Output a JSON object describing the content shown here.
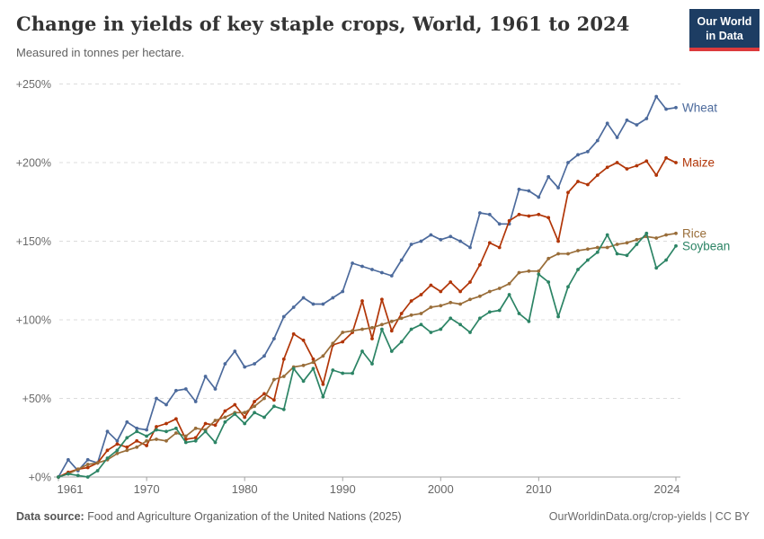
{
  "logo": {
    "line1": "Our World",
    "line2": "in Data",
    "bg_color": "#1D3D63",
    "accent_color": "#DC3A3C"
  },
  "footer": {
    "source_label": "Data source:",
    "source_text": " Food and Agriculture Organization of the United Nations (2025)",
    "credit": "OurWorldinData.org/crop-yields | CC BY"
  },
  "chart_data": {
    "type": "line",
    "title": "Change in yields of key staple crops, World, 1961 to 2024",
    "subtitle": "Measured in tonnes per hectare.",
    "unit": "percent change relative to 1961",
    "x_start": 1961,
    "x_end": 2024,
    "x_ticks": [
      1961,
      1970,
      1980,
      1990,
      2000,
      2010,
      2024
    ],
    "y_tick_values": [
      0,
      50,
      100,
      150,
      200,
      250
    ],
    "y_tick_labels": [
      "+0%",
      "+50%",
      "+100%",
      "+150%",
      "+200%",
      "+250%"
    ],
    "ylim": [
      0,
      250
    ],
    "grid": "horizontal-dashed",
    "legend_position": "line-end-labels",
    "axis_color": "#a3a3a3",
    "grid_color": "#dcdcdc",
    "tick_text_color": "#6b6b6b",
    "series": [
      {
        "name": "Wheat",
        "color": "#4C6A9C",
        "values": [
          0,
          11,
          4,
          11,
          9,
          29,
          23,
          35,
          31,
          30,
          50,
          46,
          55,
          56,
          48,
          64,
          56,
          72,
          80,
          70,
          72,
          77,
          88,
          102,
          108,
          114,
          110,
          110,
          114,
          118,
          136,
          134,
          132,
          130,
          128,
          138,
          148,
          150,
          154,
          151,
          153,
          150,
          146,
          168,
          167,
          161,
          161,
          183,
          182,
          178,
          191,
          184,
          200,
          205,
          207,
          214,
          225,
          216,
          227,
          224,
          228,
          242,
          234,
          235
        ]
      },
      {
        "name": "Maize",
        "color": "#B13507",
        "values": [
          0,
          3,
          5,
          6,
          9,
          17,
          21,
          19,
          23,
          20,
          32,
          34,
          37,
          24,
          25,
          34,
          33,
          42,
          46,
          38,
          48,
          53,
          49,
          75,
          91,
          87,
          75,
          59,
          84,
          86,
          92,
          112,
          88,
          113,
          93,
          104,
          112,
          116,
          122,
          118,
          124,
          118,
          124,
          135,
          149,
          146,
          163,
          167,
          166,
          167,
          165,
          150,
          181,
          188,
          186,
          192,
          197,
          200,
          196,
          198,
          201,
          192,
          203,
          200
        ]
      },
      {
        "name": "Rice",
        "color": "#996D39",
        "values": [
          0,
          2,
          5,
          8,
          9,
          11,
          15,
          17,
          19,
          23,
          24,
          23,
          28,
          26,
          31,
          30,
          36,
          38,
          41,
          41,
          45,
          50,
          62,
          64,
          70,
          71,
          73,
          77,
          85,
          92,
          93,
          94,
          95,
          97,
          99,
          101,
          103,
          104,
          108,
          109,
          111,
          110,
          113,
          115,
          118,
          120,
          123,
          130,
          131,
          131,
          139,
          142,
          142,
          144,
          145,
          146,
          146,
          148,
          149,
          151,
          153,
          152,
          154,
          155
        ]
      },
      {
        "name": "Soybean",
        "color": "#2C8465",
        "values": [
          0,
          2,
          1,
          0,
          4,
          12,
          17,
          25,
          29,
          26,
          30,
          29,
          31,
          22,
          23,
          29,
          22,
          35,
          40,
          34,
          41,
          38,
          45,
          43,
          69,
          61,
          69,
          51,
          68,
          66,
          66,
          80,
          72,
          94,
          80,
          86,
          94,
          97,
          92,
          94,
          101,
          97,
          92,
          101,
          105,
          106,
          116,
          104,
          99,
          129,
          124,
          102,
          121,
          132,
          138,
          143,
          154,
          142,
          141,
          148,
          155,
          133,
          138,
          147
        ]
      }
    ]
  }
}
